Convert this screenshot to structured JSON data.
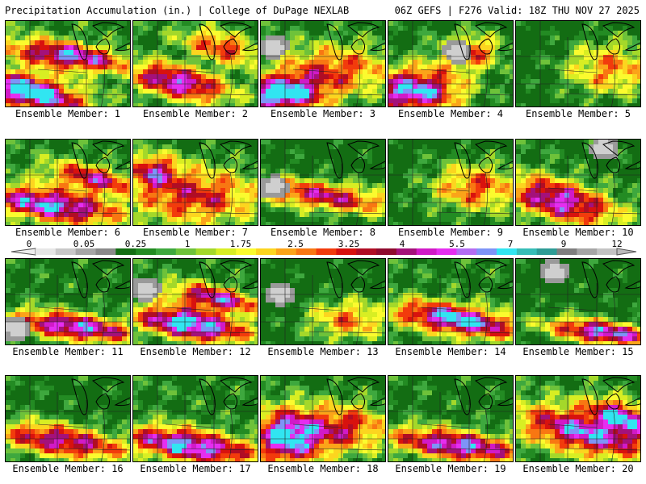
{
  "header": {
    "left": "Precipitation Accumulation (in.) | College of DuPage NEXLAB",
    "right": "06Z GEFS | F276 Valid: 18Z THU NOV 27 2025"
  },
  "legend": {
    "ticks": [
      "0",
      "0.05",
      "0.25",
      "1",
      "1.75",
      "2.5",
      "3.25",
      "4",
      "5.5",
      "7",
      "9",
      "12"
    ],
    "colors": [
      "#e6e6e6",
      "#c8c8c8",
      "#a6a6a6",
      "#8a8a8a",
      "#136d13",
      "#238b23",
      "#3ea83e",
      "#6ec23a",
      "#a4d82a",
      "#d8ee23",
      "#fbfb2e",
      "#fcd51f",
      "#fba419",
      "#f87712",
      "#f23b0c",
      "#d8120e",
      "#b00d24",
      "#8f0a2e",
      "#a4117a",
      "#d11ac7",
      "#e52ef0",
      "#b46cf3",
      "#7e94f7",
      "#31e5f1",
      "#36bdb7",
      "#2e9c96",
      "#7f7f7f",
      "#a6a6a6",
      "#c3c3c3"
    ]
  },
  "panels": [
    {
      "label": "Ensemble Member: 1",
      "pattern": {
        "type": "diag",
        "blobs": [
          [
            0.2,
            0.82,
            0.42,
            0.24,
            1.0
          ],
          [
            0.5,
            0.4,
            0.48,
            0.18,
            0.85
          ]
        ],
        "base": 0.42,
        "core": true
      }
    },
    {
      "label": "Ensemble Member: 2",
      "pattern": {
        "type": "diag",
        "blobs": [
          [
            0.35,
            0.7,
            0.4,
            0.22,
            0.85
          ],
          [
            0.7,
            0.3,
            0.3,
            0.2,
            0.6
          ]
        ],
        "base": 0.4,
        "core": true
      }
    },
    {
      "label": "Ensemble Member: 3",
      "pattern": {
        "type": "blob",
        "blobs": [
          [
            0.15,
            0.85,
            0.35,
            0.22,
            0.95
          ],
          [
            0.6,
            0.55,
            0.5,
            0.3,
            0.55
          ]
        ],
        "base": 0.38,
        "gray": [
          0.1,
          0.3
        ]
      }
    },
    {
      "label": "Ensemble Member: 4",
      "pattern": {
        "type": "blob",
        "blobs": [
          [
            0.2,
            0.8,
            0.4,
            0.28,
            0.95
          ],
          [
            0.65,
            0.35,
            0.25,
            0.2,
            0.6
          ]
        ],
        "base": 0.36,
        "gray": [
          0.55,
          0.35
        ]
      }
    },
    {
      "label": "Ensemble Member: 5",
      "pattern": {
        "type": "blob",
        "blobs": [
          [
            0.75,
            0.55,
            0.4,
            0.35,
            0.55
          ]
        ],
        "base": 0.3
      }
    },
    {
      "label": "Ensemble Member: 6",
      "pattern": {
        "type": "diag",
        "blobs": [
          [
            0.35,
            0.75,
            0.55,
            0.22,
            0.9
          ],
          [
            0.7,
            0.45,
            0.35,
            0.18,
            0.7
          ]
        ],
        "base": 0.4
      }
    },
    {
      "label": "Ensemble Member: 7",
      "pattern": {
        "type": "blob",
        "blobs": [
          [
            0.5,
            0.65,
            0.55,
            0.35,
            0.65
          ],
          [
            0.15,
            0.35,
            0.2,
            0.2,
            0.6
          ]
        ],
        "base": 0.36
      }
    },
    {
      "label": "Ensemble Member: 8",
      "pattern": {
        "type": "diag",
        "blobs": [
          [
            0.5,
            0.65,
            0.6,
            0.2,
            0.75
          ]
        ],
        "base": 0.34,
        "gray": [
          0.1,
          0.55
        ]
      }
    },
    {
      "label": "Ensemble Member: 9",
      "pattern": {
        "type": "blob",
        "blobs": [
          [
            0.7,
            0.55,
            0.4,
            0.3,
            0.6
          ]
        ],
        "base": 0.32
      }
    },
    {
      "label": "Ensemble Member: 10",
      "pattern": {
        "type": "diag",
        "blobs": [
          [
            0.35,
            0.7,
            0.45,
            0.28,
            0.85
          ]
        ],
        "base": 0.38,
        "gray": [
          0.7,
          0.1
        ]
      }
    },
    {
      "label": "Ensemble Member: 11",
      "pattern": {
        "type": "diag",
        "blobs": [
          [
            0.55,
            0.78,
            0.5,
            0.18,
            0.9
          ]
        ],
        "base": 0.38,
        "gray": [
          0.08,
          0.8
        ]
      }
    },
    {
      "label": "Ensemble Member: 12",
      "pattern": {
        "type": "diag",
        "blobs": [
          [
            0.45,
            0.75,
            0.45,
            0.2,
            1.0
          ],
          [
            0.65,
            0.45,
            0.35,
            0.16,
            0.8
          ]
        ],
        "base": 0.4,
        "core": true,
        "gray": [
          0.1,
          0.35
        ]
      }
    },
    {
      "label": "Ensemble Member: 13",
      "pattern": {
        "type": "blob",
        "blobs": [
          [
            0.7,
            0.7,
            0.35,
            0.25,
            0.55
          ]
        ],
        "base": 0.32,
        "gray": [
          0.15,
          0.4
        ]
      }
    },
    {
      "label": "Ensemble Member: 14",
      "pattern": {
        "type": "diag",
        "blobs": [
          [
            0.55,
            0.7,
            0.5,
            0.2,
            0.95
          ]
        ],
        "base": 0.4,
        "core": true
      }
    },
    {
      "label": "Ensemble Member: 15",
      "pattern": {
        "type": "diag",
        "blobs": [
          [
            0.7,
            0.85,
            0.45,
            0.16,
            0.95
          ]
        ],
        "base": 0.34,
        "core": true,
        "gray": [
          0.3,
          0.15
        ]
      }
    },
    {
      "label": "Ensemble Member: 16",
      "pattern": {
        "type": "diag",
        "blobs": [
          [
            0.45,
            0.75,
            0.55,
            0.22,
            0.8
          ]
        ],
        "base": 0.36
      }
    },
    {
      "label": "Ensemble Member: 17",
      "pattern": {
        "type": "diag",
        "blobs": [
          [
            0.45,
            0.8,
            0.55,
            0.22,
            0.92
          ]
        ],
        "base": 0.4
      }
    },
    {
      "label": "Ensemble Member: 18",
      "pattern": {
        "type": "blob",
        "blobs": [
          [
            0.2,
            0.7,
            0.3,
            0.35,
            0.95
          ],
          [
            0.7,
            0.6,
            0.35,
            0.3,
            0.6
          ]
        ],
        "base": 0.36
      }
    },
    {
      "label": "Ensemble Member: 19",
      "pattern": {
        "type": "diag",
        "blobs": [
          [
            0.55,
            0.8,
            0.55,
            0.2,
            0.9
          ]
        ],
        "base": 0.38
      }
    },
    {
      "label": "Ensemble Member: 20",
      "pattern": {
        "type": "diag",
        "blobs": [
          [
            0.55,
            0.65,
            0.55,
            0.3,
            0.85
          ],
          [
            0.85,
            0.45,
            0.25,
            0.2,
            0.7
          ]
        ],
        "base": 0.4
      }
    }
  ]
}
